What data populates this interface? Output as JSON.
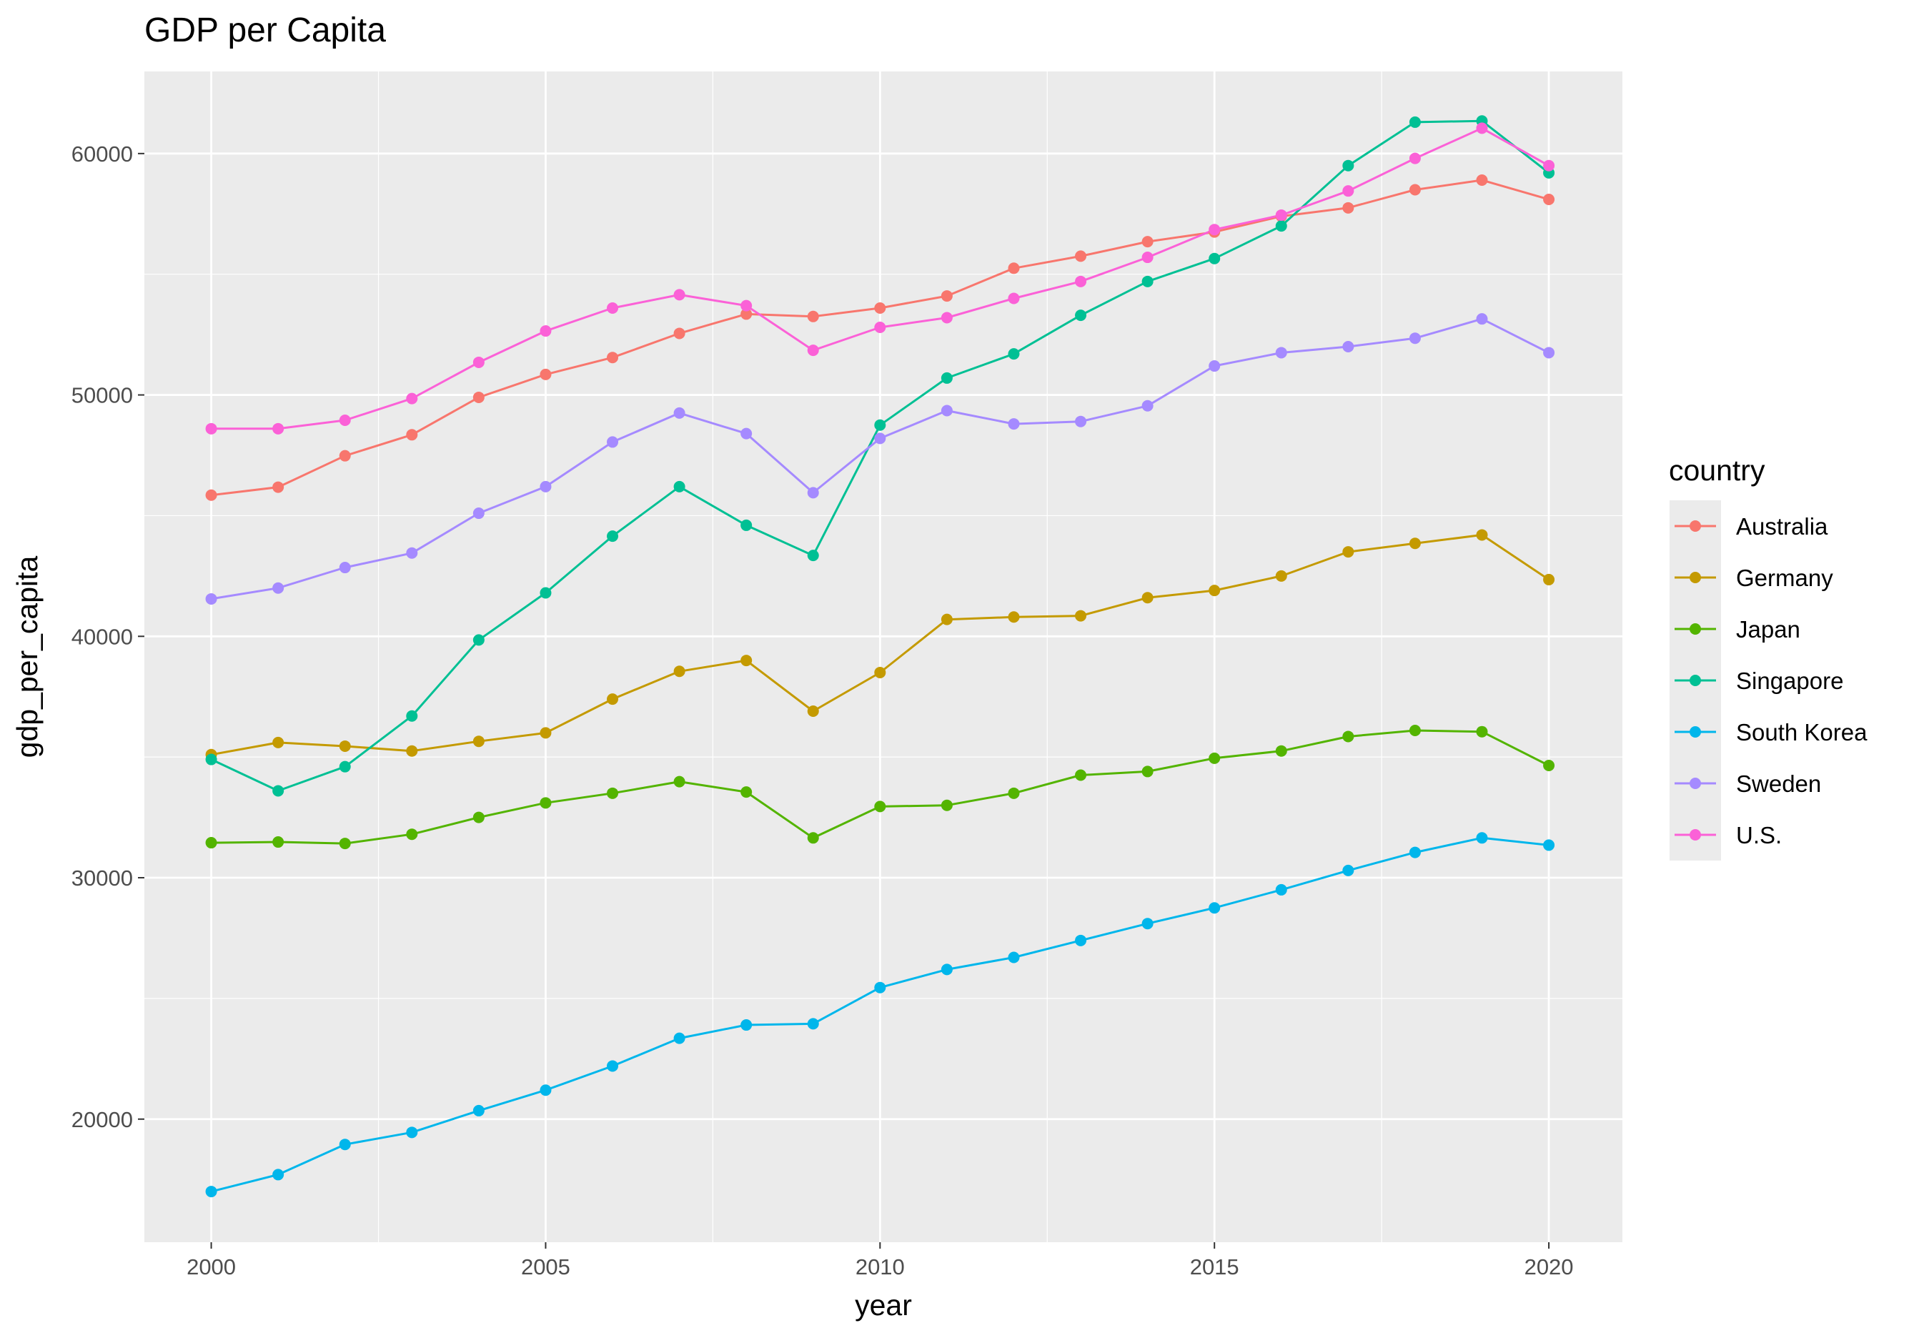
{
  "chart_data": {
    "type": "line",
    "title": "GDP per Capita",
    "xlabel": "year",
    "ylabel": "gdp_per_capita",
    "x": [
      2000,
      2001,
      2002,
      2003,
      2004,
      2005,
      2006,
      2007,
      2008,
      2009,
      2010,
      2011,
      2012,
      2013,
      2014,
      2015,
      2016,
      2017,
      2018,
      2019,
      2020
    ],
    "xlim": [
      1999,
      2021.1
    ],
    "ylim": [
      14900,
      63400
    ],
    "xticks": [
      2000,
      2005,
      2010,
      2015,
      2020
    ],
    "xtick_labels": [
      "2000",
      "2005",
      "2010",
      "2015",
      "2020"
    ],
    "yticks": [
      20000,
      30000,
      40000,
      50000,
      60000
    ],
    "ytick_labels": [
      "20000",
      "30000",
      "40000",
      "50000",
      "60000"
    ],
    "grid": true,
    "markers": true,
    "legend": {
      "title": "country",
      "position": "right"
    },
    "series": [
      {
        "name": "Australia",
        "color": "#F8766D",
        "values": [
          45850,
          46180,
          47480,
          48350,
          49900,
          50850,
          51550,
          52550,
          53350,
          53250,
          53600,
          54100,
          55250,
          55750,
          56350,
          56750,
          57400,
          57750,
          58500,
          58900,
          58100
        ]
      },
      {
        "name": "Germany",
        "color": "#C49A00",
        "values": [
          35100,
          35600,
          35450,
          35250,
          35650,
          36000,
          37400,
          38550,
          39000,
          36900,
          38500,
          40700,
          40800,
          40850,
          41600,
          41900,
          42500,
          43500,
          43850,
          44200,
          42350
        ]
      },
      {
        "name": "Japan",
        "color": "#53B400",
        "values": [
          31450,
          31480,
          31420,
          31800,
          32500,
          33100,
          33500,
          33980,
          33550,
          31650,
          32950,
          33000,
          33500,
          34250,
          34400,
          34950,
          35250,
          35850,
          36100,
          36050,
          34650
        ]
      },
      {
        "name": "Singapore",
        "color": "#00C094",
        "values": [
          34900,
          33600,
          34600,
          36700,
          39850,
          41800,
          44150,
          46200,
          44600,
          43350,
          48750,
          50700,
          51700,
          53300,
          54700,
          55650,
          57000,
          59500,
          61300,
          61350,
          59200
        ]
      },
      {
        "name": "South Korea",
        "color": "#00B6EB",
        "values": [
          17000,
          17700,
          18950,
          19450,
          20350,
          21200,
          22200,
          23350,
          23900,
          23950,
          25450,
          26200,
          26700,
          27400,
          28100,
          28750,
          29500,
          30300,
          31050,
          31650,
          31350
        ]
      },
      {
        "name": "Sweden",
        "color": "#A58AFF",
        "values": [
          41550,
          42000,
          42850,
          43450,
          45100,
          46200,
          48050,
          49250,
          48400,
          45950,
          48200,
          49350,
          48800,
          48900,
          49550,
          51200,
          51750,
          52000,
          52350,
          53150,
          51750
        ]
      },
      {
        "name": "U.S.",
        "color": "#FB61D7",
        "values": [
          48600,
          48600,
          48950,
          49850,
          51350,
          52650,
          53600,
          54150,
          53700,
          51850,
          52800,
          53200,
          54000,
          54700,
          55700,
          56850,
          57450,
          58450,
          59800,
          61050,
          59500
        ]
      }
    ]
  }
}
